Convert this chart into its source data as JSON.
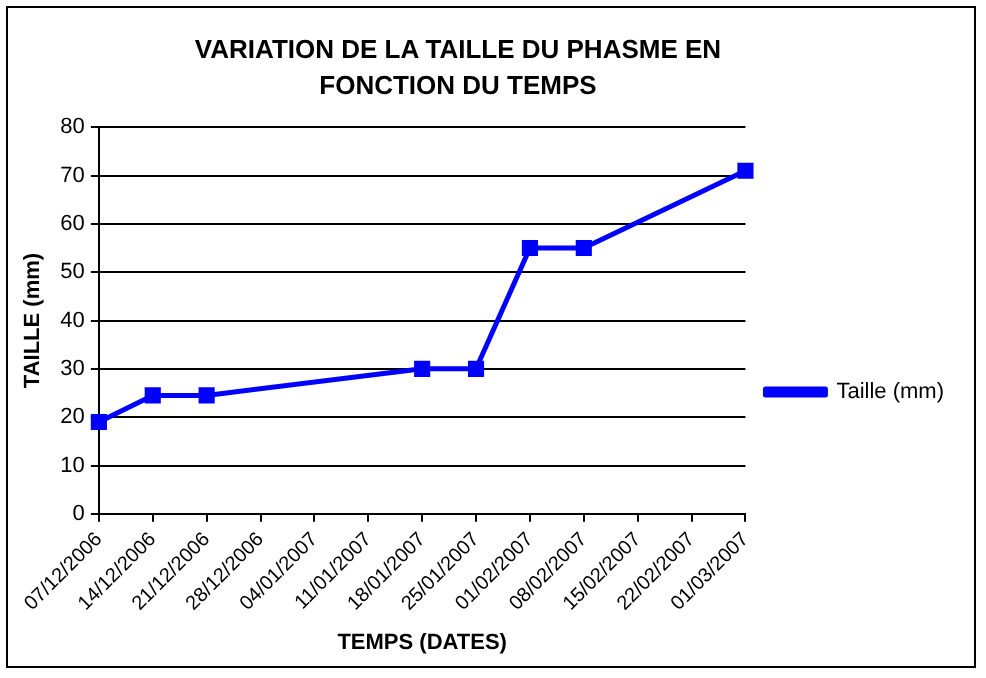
{
  "chart_data": {
    "type": "line",
    "title": "VARIATION DE LA TAILLE DU PHASME EN FONCTION DU TEMPS",
    "xlabel": "TEMPS (DATES)",
    "ylabel": "TAILLE (mm)",
    "x": [
      "2006-12-07",
      "2006-12-14",
      "2006-12-21",
      "2007-01-18",
      "2007-01-25",
      "2007-02-01",
      "2007-02-08",
      "2007-03-01"
    ],
    "series": [
      {
        "name": "Taille (mm)",
        "color": "#0000ff",
        "values": [
          19,
          24.5,
          24.5,
          30,
          30,
          55,
          55,
          71
        ]
      }
    ],
    "xlim": [
      "2006-12-07",
      "2007-03-01"
    ],
    "xticks": [
      {
        "value": "2006-12-07",
        "label": "07/12/2006"
      },
      {
        "value": "2006-12-14",
        "label": "14/12/2006"
      },
      {
        "value": "2006-12-21",
        "label": "21/12/2006"
      },
      {
        "value": "2006-12-28",
        "label": "28/12/2006"
      },
      {
        "value": "2007-01-04",
        "label": "04/01/2007"
      },
      {
        "value": "2007-01-11",
        "label": "11/01/2007"
      },
      {
        "value": "2007-01-18",
        "label": "18/01/2007"
      },
      {
        "value": "2007-01-25",
        "label": "25/01/2007"
      },
      {
        "value": "2007-02-01",
        "label": "01/02/2007"
      },
      {
        "value": "2007-02-08",
        "label": "08/02/2007"
      },
      {
        "value": "2007-02-15",
        "label": "15/02/2007"
      },
      {
        "value": "2007-02-22",
        "label": "22/02/2007"
      },
      {
        "value": "2007-03-01",
        "label": "01/03/2007"
      }
    ],
    "ylim": [
      0,
      80
    ],
    "yticks": [
      0,
      10,
      20,
      30,
      40,
      50,
      60,
      70,
      80
    ],
    "grid": "y",
    "legend": "right",
    "marker": "square",
    "line_style": "solid"
  }
}
